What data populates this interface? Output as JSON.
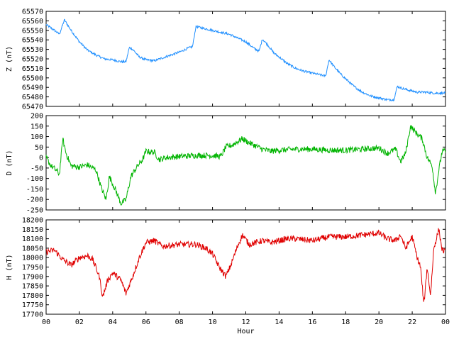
{
  "chart_data": [
    {
      "type": "line",
      "series": [
        {
          "color": "#1f8fff"
        }
      ],
      "ylabel": "Z (nT)",
      "ylim": [
        65470,
        65570
      ],
      "yticks": [
        65470,
        65480,
        65490,
        65500,
        65510,
        65520,
        65530,
        65540,
        65550,
        65560,
        65570
      ],
      "xlim": [
        0,
        24
      ],
      "grid": false,
      "points": [
        [
          0,
          65556
        ],
        [
          0.5,
          65550
        ],
        [
          0.8,
          65546
        ],
        [
          1.1,
          65561
        ],
        [
          1.5,
          65550
        ],
        [
          2.0,
          65538
        ],
        [
          2.5,
          65529
        ],
        [
          3.0,
          65524
        ],
        [
          3.5,
          65520
        ],
        [
          4.0,
          65519
        ],
        [
          4.5,
          65517
        ],
        [
          4.8,
          65517
        ],
        [
          5.0,
          65532
        ],
        [
          5.2,
          65530
        ],
        [
          5.6,
          65522
        ],
        [
          6.0,
          65519
        ],
        [
          6.5,
          65518
        ],
        [
          7.0,
          65521
        ],
        [
          7.5,
          65524
        ],
        [
          8.0,
          65527
        ],
        [
          8.5,
          65531
        ],
        [
          8.8,
          65533
        ],
        [
          9.0,
          65554
        ],
        [
          9.5,
          65552
        ],
        [
          10.0,
          65550
        ],
        [
          10.5,
          65548
        ],
        [
          11.0,
          65546
        ],
        [
          11.5,
          65542
        ],
        [
          12.0,
          65538
        ],
        [
          12.5,
          65531
        ],
        [
          12.8,
          65528
        ],
        [
          13.0,
          65541
        ],
        [
          13.3,
          65535
        ],
        [
          13.7,
          65526
        ],
        [
          14.0,
          65522
        ],
        [
          14.5,
          65515
        ],
        [
          15.0,
          65510
        ],
        [
          15.5,
          65507
        ],
        [
          16.0,
          65505
        ],
        [
          16.5,
          65503
        ],
        [
          16.8,
          65502
        ],
        [
          17.0,
          65519
        ],
        [
          17.3,
          65512
        ],
        [
          17.7,
          65504
        ],
        [
          18.0,
          65499
        ],
        [
          18.5,
          65491
        ],
        [
          19.0,
          65485
        ],
        [
          19.5,
          65481
        ],
        [
          20.0,
          65479
        ],
        [
          20.5,
          65477
        ],
        [
          20.9,
          65477
        ],
        [
          21.1,
          65491
        ],
        [
          21.4,
          65489
        ],
        [
          21.8,
          65487
        ],
        [
          22.3,
          65485
        ],
        [
          22.8,
          65485
        ],
        [
          23.3,
          65484
        ],
        [
          24.0,
          65484
        ]
      ],
      "noise": 1.2
    },
    {
      "type": "line",
      "series": [
        {
          "color": "#00b400"
        }
      ],
      "ylabel": "D (nT)",
      "ylim": [
        -250,
        200
      ],
      "yticks": [
        -250,
        -200,
        -150,
        -100,
        -50,
        0,
        50,
        100,
        150,
        200
      ],
      "xlim": [
        0,
        24
      ],
      "grid": false,
      "points": [
        [
          0,
          0
        ],
        [
          0.3,
          -40
        ],
        [
          0.6,
          -60
        ],
        [
          0.8,
          -80
        ],
        [
          1.0,
          90
        ],
        [
          1.2,
          20
        ],
        [
          1.5,
          -40
        ],
        [
          2.0,
          -45
        ],
        [
          2.5,
          -35
        ],
        [
          3.0,
          -60
        ],
        [
          3.3,
          -140
        ],
        [
          3.6,
          -200
        ],
        [
          3.8,
          -90
        ],
        [
          4.2,
          -160
        ],
        [
          4.5,
          -220
        ],
        [
          4.8,
          -200
        ],
        [
          5.1,
          -90
        ],
        [
          5.5,
          -40
        ],
        [
          5.8,
          -10
        ],
        [
          6.0,
          30
        ],
        [
          6.5,
          25
        ],
        [
          6.8,
          -10
        ],
        [
          7.2,
          0
        ],
        [
          8.0,
          5
        ],
        [
          9.0,
          10
        ],
        [
          10.0,
          10
        ],
        [
          10.5,
          5
        ],
        [
          10.8,
          50
        ],
        [
          11.2,
          60
        ],
        [
          11.8,
          90
        ],
        [
          12.2,
          70
        ],
        [
          13.0,
          40
        ],
        [
          13.5,
          30
        ],
        [
          14.0,
          35
        ],
        [
          15.0,
          40
        ],
        [
          16.0,
          40
        ],
        [
          17.0,
          35
        ],
        [
          18.0,
          35
        ],
        [
          19.0,
          40
        ],
        [
          20.0,
          45
        ],
        [
          20.5,
          20
        ],
        [
          21.0,
          40
        ],
        [
          21.3,
          -20
        ],
        [
          21.6,
          20
        ],
        [
          21.9,
          150
        ],
        [
          22.2,
          120
        ],
        [
          22.6,
          90
        ],
        [
          22.9,
          0
        ],
        [
          23.2,
          -40
        ],
        [
          23.4,
          -170
        ],
        [
          23.6,
          -60
        ],
        [
          23.8,
          30
        ],
        [
          24.0,
          30
        ]
      ],
      "noise": 14
    },
    {
      "type": "line",
      "series": [
        {
          "color": "#e00000"
        }
      ],
      "ylabel": "H (nT)",
      "ylim": [
        17700,
        18200
      ],
      "yticks": [
        17700,
        17750,
        17800,
        17850,
        17900,
        17950,
        18000,
        18050,
        18100,
        18150,
        18200
      ],
      "xlim": [
        0,
        24
      ],
      "grid": false,
      "xticks": [
        "00",
        "02",
        "04",
        "06",
        "08",
        "10",
        "12",
        "14",
        "16",
        "18",
        "20",
        "22",
        "00"
      ],
      "xlabel": "Hour",
      "points": [
        [
          0,
          18030
        ],
        [
          0.5,
          18040
        ],
        [
          1.0,
          17990
        ],
        [
          1.5,
          17960
        ],
        [
          2.0,
          18000
        ],
        [
          2.5,
          18010
        ],
        [
          2.8,
          17990
        ],
        [
          3.2,
          17900
        ],
        [
          3.4,
          17790
        ],
        [
          3.7,
          17880
        ],
        [
          4.0,
          17920
        ],
        [
          4.5,
          17880
        ],
        [
          4.8,
          17810
        ],
        [
          5.2,
          17900
        ],
        [
          5.6,
          18000
        ],
        [
          6.0,
          18080
        ],
        [
          6.5,
          18090
        ],
        [
          7.0,
          18060
        ],
        [
          7.5,
          18065
        ],
        [
          8.0,
          18070
        ],
        [
          9.0,
          18070
        ],
        [
          9.6,
          18050
        ],
        [
          10.0,
          18020
        ],
        [
          10.4,
          17950
        ],
        [
          10.8,
          17900
        ],
        [
          11.1,
          17960
        ],
        [
          11.5,
          18060
        ],
        [
          11.8,
          18120
        ],
        [
          12.2,
          18070
        ],
        [
          13.0,
          18090
        ],
        [
          13.5,
          18080
        ],
        [
          14.0,
          18090
        ],
        [
          14.5,
          18100
        ],
        [
          15.0,
          18100
        ],
        [
          16.0,
          18090
        ],
        [
          17.0,
          18110
        ],
        [
          18.0,
          18110
        ],
        [
          19.0,
          18120
        ],
        [
          20.0,
          18130
        ],
        [
          20.5,
          18100
        ],
        [
          21.0,
          18090
        ],
        [
          21.3,
          18120
        ],
        [
          21.6,
          18050
        ],
        [
          22.0,
          18110
        ],
        [
          22.3,
          18000
        ],
        [
          22.5,
          17950
        ],
        [
          22.7,
          17750
        ],
        [
          22.9,
          17950
        ],
        [
          23.1,
          17800
        ],
        [
          23.3,
          18050
        ],
        [
          23.6,
          18150
        ],
        [
          23.8,
          18040
        ],
        [
          24.0,
          18030
        ]
      ],
      "noise": 16
    }
  ]
}
